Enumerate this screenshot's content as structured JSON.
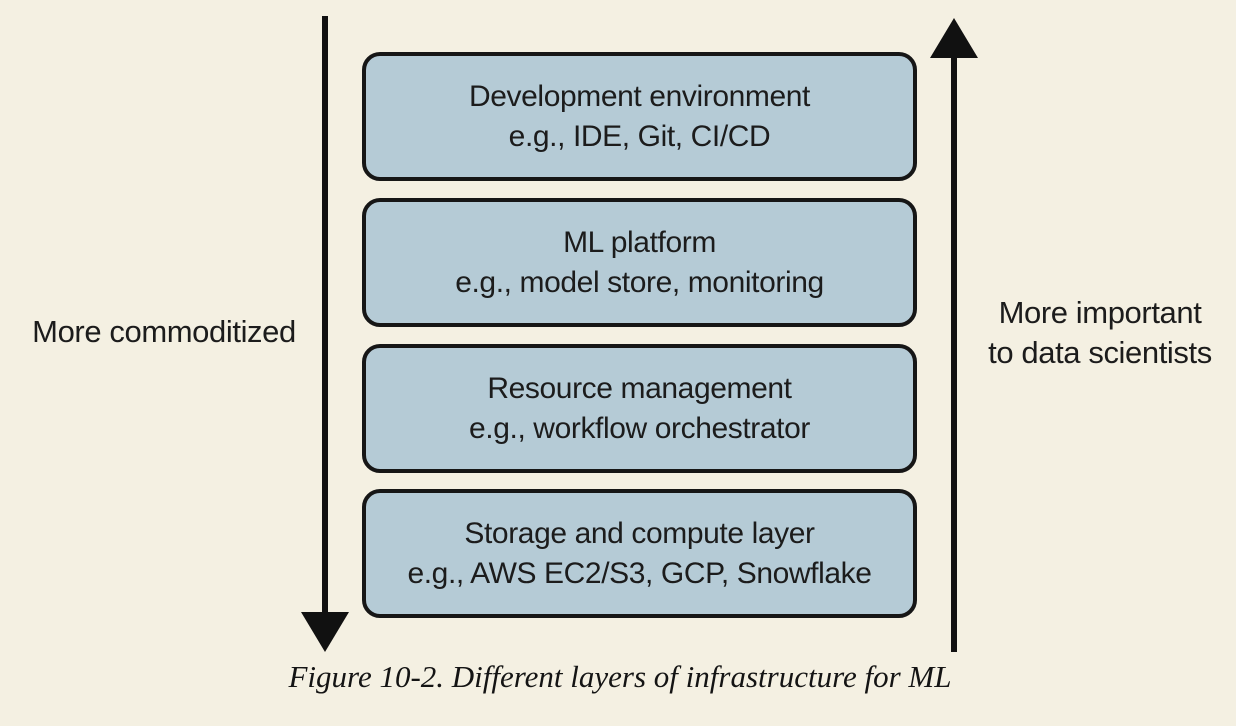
{
  "caption": "Figure 10-2. Different layers of infrastructure for ML",
  "labels": {
    "left": "More commoditized",
    "right_line1": "More important",
    "right_line2": "to data scientists"
  },
  "layers": [
    {
      "title": "Development environment",
      "examples": "e.g., IDE, Git, CI/CD"
    },
    {
      "title": "ML platform",
      "examples": "e.g., model store, monitoring"
    },
    {
      "title": "Resource management",
      "examples": "e.g., workflow orchestrator"
    },
    {
      "title": "Storage and compute layer",
      "examples": "e.g., AWS EC2/S3, GCP, Snowflake"
    }
  ],
  "arrows": {
    "left_direction": "down",
    "right_direction": "up"
  },
  "colors": {
    "background": "#f4f0e2",
    "box_fill": "#b5cbd6",
    "box_border": "#161616",
    "arrow_color": "#111111",
    "text_color": "#1c1c1c"
  }
}
